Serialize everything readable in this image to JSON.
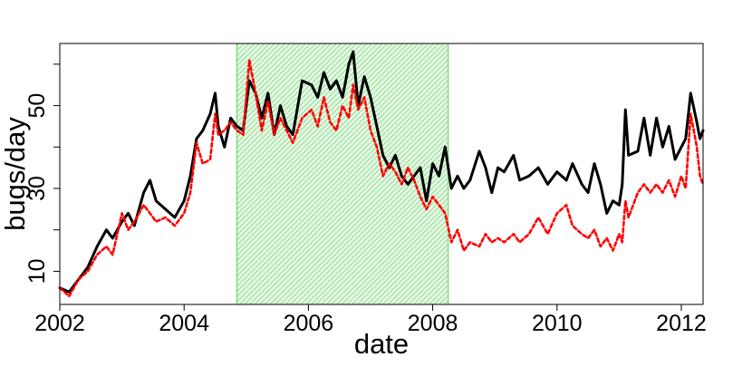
{
  "chart_data": {
    "type": "line",
    "xlabel": "date",
    "ylabel": "bugs/day",
    "xlim": [
      2002.0,
      2012.35
    ],
    "ylim": [
      2,
      65
    ],
    "x_ticks": [
      2002,
      2004,
      2006,
      2008,
      2010,
      2012
    ],
    "x_tick_labels": [
      "2002",
      "2004",
      "2006",
      "2008",
      "2010",
      "2012"
    ],
    "y_ticks": [
      10,
      30,
      50
    ],
    "y_tick_labels": [
      "10",
      "30",
      "50"
    ],
    "y_minor_ticks": [
      20,
      40,
      60
    ],
    "grid": false,
    "legend": "none",
    "shaded_region": {
      "x_start": 2004.85,
      "x_end": 2008.25,
      "color": "#5fd35f",
      "pattern": "diagonal-hatch"
    },
    "series": [
      {
        "color": "#000000",
        "style": "solid",
        "points": [
          [
            2002.0,
            6
          ],
          [
            2002.15,
            5
          ],
          [
            2002.3,
            8
          ],
          [
            2002.45,
            11
          ],
          [
            2002.6,
            16
          ],
          [
            2002.75,
            20
          ],
          [
            2002.85,
            18
          ],
          [
            2003.0,
            22
          ],
          [
            2003.1,
            24
          ],
          [
            2003.2,
            21
          ],
          [
            2003.35,
            29
          ],
          [
            2003.45,
            32
          ],
          [
            2003.55,
            27
          ],
          [
            2003.7,
            25
          ],
          [
            2003.85,
            23
          ],
          [
            2004.0,
            27
          ],
          [
            2004.1,
            33
          ],
          [
            2004.2,
            42
          ],
          [
            2004.3,
            44
          ],
          [
            2004.42,
            48
          ],
          [
            2004.5,
            53
          ],
          [
            2004.55,
            45
          ],
          [
            2004.65,
            40
          ],
          [
            2004.75,
            47
          ],
          [
            2004.85,
            45
          ],
          [
            2004.95,
            44
          ],
          [
            2005.05,
            56
          ],
          [
            2005.15,
            53
          ],
          [
            2005.25,
            47
          ],
          [
            2005.35,
            53
          ],
          [
            2005.45,
            43
          ],
          [
            2005.55,
            50
          ],
          [
            2005.65,
            45
          ],
          [
            2005.75,
            43
          ],
          [
            2005.9,
            56
          ],
          [
            2006.05,
            55
          ],
          [
            2006.15,
            52
          ],
          [
            2006.25,
            58
          ],
          [
            2006.35,
            54
          ],
          [
            2006.45,
            56
          ],
          [
            2006.55,
            52
          ],
          [
            2006.65,
            60
          ],
          [
            2006.72,
            63
          ],
          [
            2006.8,
            50
          ],
          [
            2006.9,
            57
          ],
          [
            2007.0,
            52
          ],
          [
            2007.1,
            45
          ],
          [
            2007.2,
            38
          ],
          [
            2007.3,
            35
          ],
          [
            2007.4,
            38
          ],
          [
            2007.5,
            33
          ],
          [
            2007.6,
            31
          ],
          [
            2007.7,
            33
          ],
          [
            2007.8,
            35
          ],
          [
            2007.9,
            27
          ],
          [
            2008.0,
            36
          ],
          [
            2008.1,
            33
          ],
          [
            2008.2,
            40
          ],
          [
            2008.3,
            30
          ],
          [
            2008.4,
            33
          ],
          [
            2008.5,
            30
          ],
          [
            2008.6,
            32
          ],
          [
            2008.75,
            39
          ],
          [
            2008.85,
            35
          ],
          [
            2008.95,
            29
          ],
          [
            2009.05,
            35
          ],
          [
            2009.15,
            34
          ],
          [
            2009.3,
            38
          ],
          [
            2009.4,
            32
          ],
          [
            2009.55,
            33
          ],
          [
            2009.7,
            35
          ],
          [
            2009.85,
            31
          ],
          [
            2010.0,
            34
          ],
          [
            2010.15,
            32
          ],
          [
            2010.25,
            36
          ],
          [
            2010.4,
            31
          ],
          [
            2010.5,
            29
          ],
          [
            2010.6,
            36
          ],
          [
            2010.7,
            31
          ],
          [
            2010.8,
            24
          ],
          [
            2010.9,
            27
          ],
          [
            2011.0,
            26
          ],
          [
            2011.05,
            31
          ],
          [
            2011.1,
            49
          ],
          [
            2011.15,
            38
          ],
          [
            2011.3,
            39
          ],
          [
            2011.4,
            47
          ],
          [
            2011.5,
            38
          ],
          [
            2011.6,
            47
          ],
          [
            2011.7,
            40
          ],
          [
            2011.8,
            45
          ],
          [
            2011.9,
            37
          ],
          [
            2012.0,
            40
          ],
          [
            2012.07,
            42
          ],
          [
            2012.15,
            53
          ],
          [
            2012.25,
            46
          ],
          [
            2012.3,
            42
          ],
          [
            2012.35,
            44
          ]
        ]
      },
      {
        "color": "#ff0000",
        "style": "dashed",
        "points": [
          [
            2002.0,
            6
          ],
          [
            2002.15,
            4
          ],
          [
            2002.3,
            8
          ],
          [
            2002.45,
            10
          ],
          [
            2002.6,
            14
          ],
          [
            2002.75,
            16
          ],
          [
            2002.85,
            14
          ],
          [
            2003.0,
            24
          ],
          [
            2003.1,
            20
          ],
          [
            2003.2,
            22
          ],
          [
            2003.35,
            26
          ],
          [
            2003.45,
            24
          ],
          [
            2003.55,
            22
          ],
          [
            2003.7,
            23
          ],
          [
            2003.85,
            21
          ],
          [
            2004.0,
            24
          ],
          [
            2004.1,
            29
          ],
          [
            2004.2,
            41
          ],
          [
            2004.3,
            36
          ],
          [
            2004.42,
            37
          ],
          [
            2004.5,
            48
          ],
          [
            2004.55,
            43
          ],
          [
            2004.65,
            44
          ],
          [
            2004.75,
            46
          ],
          [
            2004.85,
            44
          ],
          [
            2004.95,
            43
          ],
          [
            2005.05,
            61
          ],
          [
            2005.15,
            53
          ],
          [
            2005.25,
            44
          ],
          [
            2005.35,
            51
          ],
          [
            2005.45,
            43
          ],
          [
            2005.55,
            47
          ],
          [
            2005.65,
            44
          ],
          [
            2005.75,
            41
          ],
          [
            2005.9,
            47
          ],
          [
            2006.05,
            49
          ],
          [
            2006.15,
            45
          ],
          [
            2006.25,
            52
          ],
          [
            2006.35,
            46
          ],
          [
            2006.45,
            44
          ],
          [
            2006.55,
            50
          ],
          [
            2006.65,
            47
          ],
          [
            2006.72,
            55
          ],
          [
            2006.8,
            49
          ],
          [
            2006.9,
            52
          ],
          [
            2007.0,
            44
          ],
          [
            2007.1,
            40
          ],
          [
            2007.2,
            33
          ],
          [
            2007.3,
            36
          ],
          [
            2007.4,
            34
          ],
          [
            2007.5,
            31
          ],
          [
            2007.6,
            35
          ],
          [
            2007.7,
            32
          ],
          [
            2007.8,
            28
          ],
          [
            2007.9,
            25
          ],
          [
            2008.0,
            28
          ],
          [
            2008.1,
            26
          ],
          [
            2008.2,
            24
          ],
          [
            2008.3,
            17
          ],
          [
            2008.4,
            20
          ],
          [
            2008.5,
            15
          ],
          [
            2008.6,
            17
          ],
          [
            2008.75,
            16
          ],
          [
            2008.85,
            19
          ],
          [
            2008.95,
            17
          ],
          [
            2009.05,
            18
          ],
          [
            2009.15,
            17
          ],
          [
            2009.3,
            19
          ],
          [
            2009.4,
            17
          ],
          [
            2009.55,
            19
          ],
          [
            2009.7,
            23
          ],
          [
            2009.85,
            19
          ],
          [
            2010.0,
            24
          ],
          [
            2010.15,
            26
          ],
          [
            2010.25,
            21
          ],
          [
            2010.4,
            19
          ],
          [
            2010.5,
            18
          ],
          [
            2010.6,
            20
          ],
          [
            2010.7,
            16
          ],
          [
            2010.8,
            18
          ],
          [
            2010.9,
            15
          ],
          [
            2011.0,
            19
          ],
          [
            2011.05,
            17
          ],
          [
            2011.1,
            27
          ],
          [
            2011.15,
            23
          ],
          [
            2011.3,
            29
          ],
          [
            2011.4,
            31
          ],
          [
            2011.5,
            29
          ],
          [
            2011.6,
            31
          ],
          [
            2011.7,
            29
          ],
          [
            2011.8,
            32
          ],
          [
            2011.9,
            28
          ],
          [
            2012.0,
            33
          ],
          [
            2012.07,
            30
          ],
          [
            2012.15,
            48
          ],
          [
            2012.25,
            40
          ],
          [
            2012.3,
            33
          ],
          [
            2012.35,
            31
          ]
        ]
      }
    ]
  }
}
